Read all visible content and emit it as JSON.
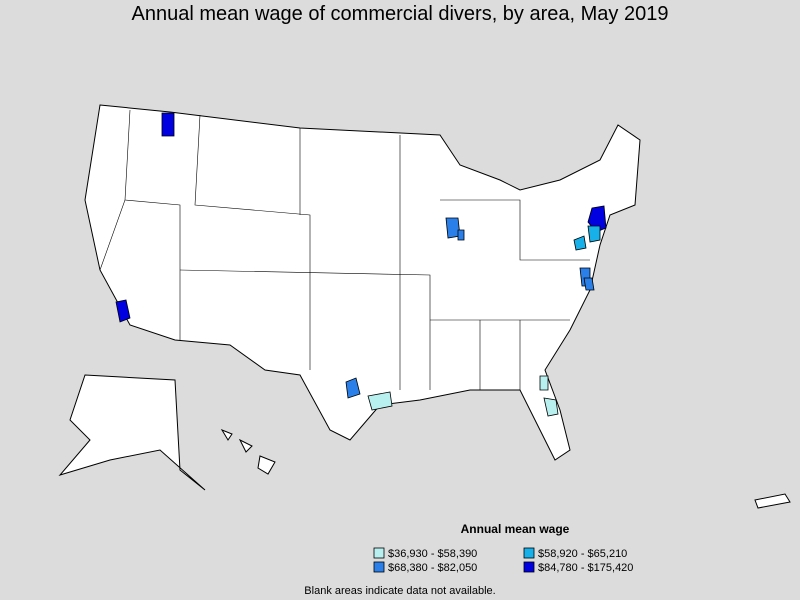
{
  "title": "Annual mean wage of commercial divers, by area, May 2019",
  "legend": {
    "title": "Annual mean wage",
    "items": [
      {
        "label": "$36,930 - $58,390",
        "color": "#b8f0f0"
      },
      {
        "label": "$58,920 - $65,210",
        "color": "#18b0e8"
      },
      {
        "label": "$68,380 - $82,050",
        "color": "#2a80e8"
      },
      {
        "label": "$84,780 - $175,420",
        "color": "#0000e0"
      }
    ]
  },
  "footnote": "Blank areas indicate data not available."
}
